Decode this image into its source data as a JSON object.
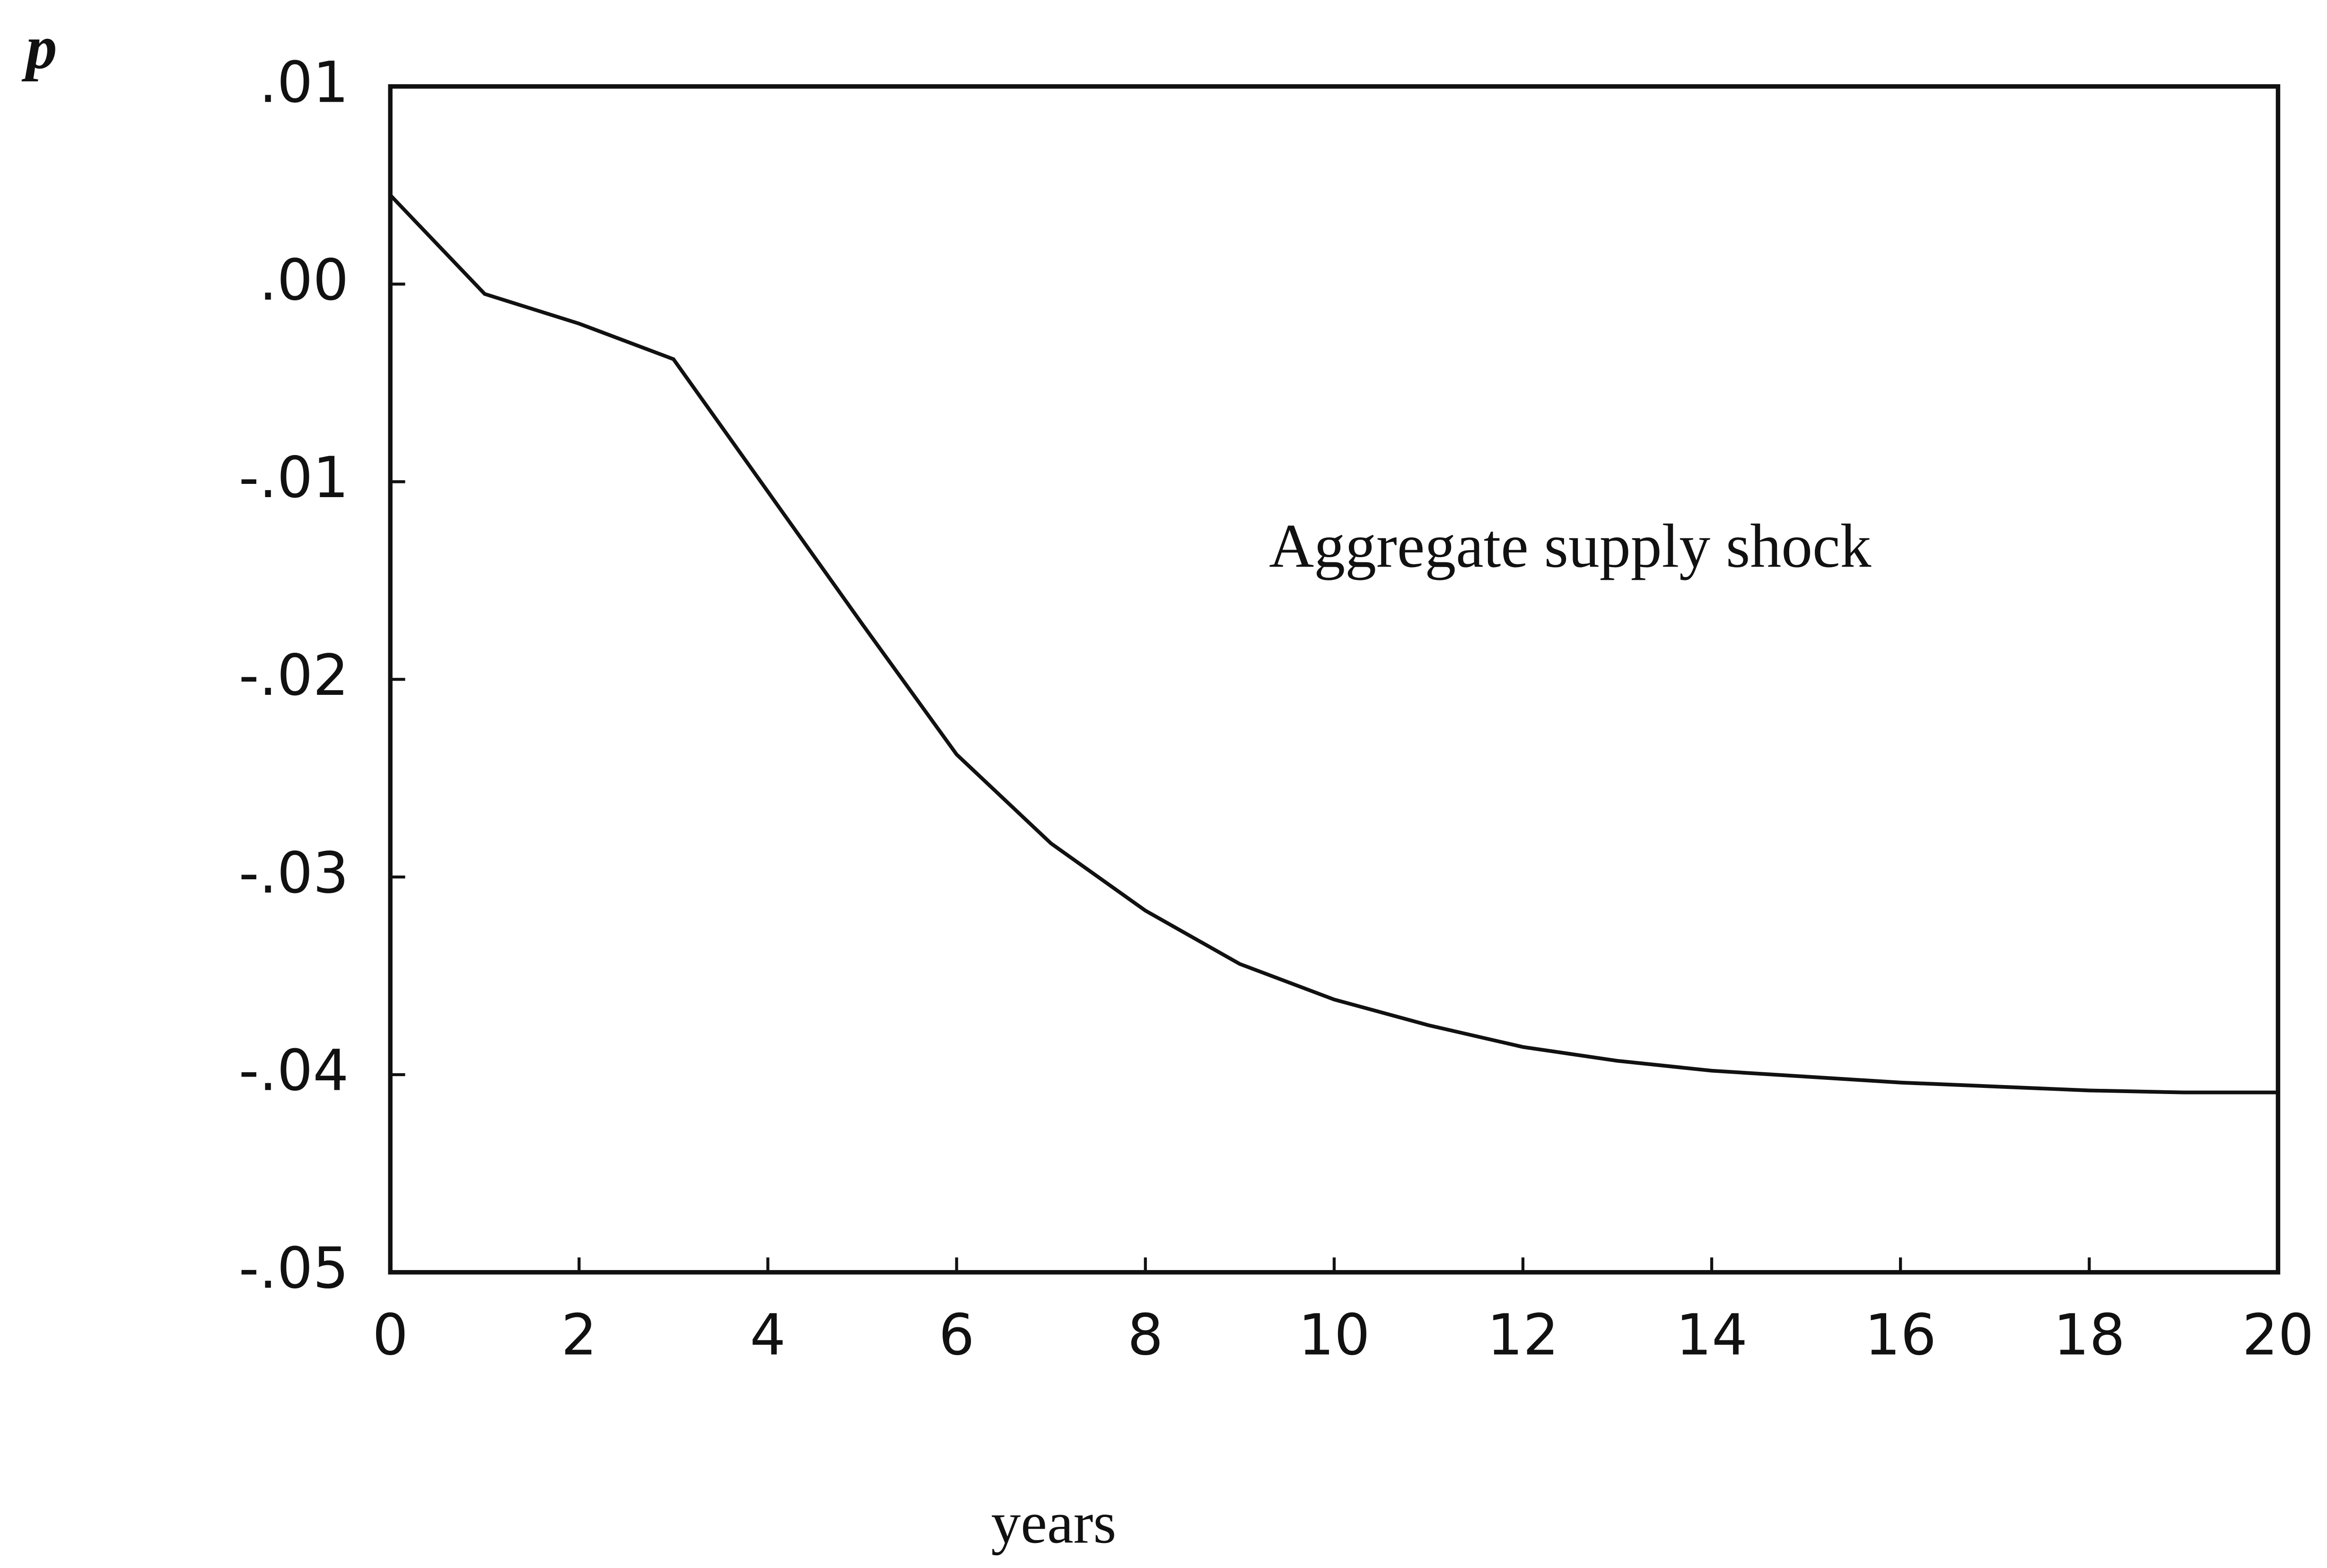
{
  "chart_data": {
    "type": "line",
    "y_label": "p",
    "x_label": "years",
    "annotation": "Aggregate supply shock",
    "x": [
      0,
      1,
      2,
      3,
      4,
      5,
      6,
      7,
      8,
      9,
      10,
      11,
      12,
      13,
      14,
      15,
      16,
      17,
      18,
      19,
      20
    ],
    "series": [
      {
        "color": "#111111",
        "values": [
          0.0045,
          -0.0005,
          -0.002,
          -0.0038,
          -0.0105,
          -0.0172,
          -0.0238,
          -0.0283,
          -0.0317,
          -0.0344,
          -0.0362,
          -0.0375,
          -0.0386,
          -0.0393,
          -0.0398,
          -0.0401,
          -0.0404,
          -0.0406,
          -0.0408,
          -0.0409,
          -0.0409
        ]
      }
    ],
    "xlim": [
      0,
      20
    ],
    "xticks": [
      0,
      2,
      4,
      6,
      8,
      10,
      12,
      14,
      16,
      18,
      20
    ],
    "ylim": [
      -0.05,
      0.01
    ],
    "yticks": [
      {
        "value": -0.05,
        "label": "-.05"
      },
      {
        "value": -0.04,
        "label": "-.04"
      },
      {
        "value": -0.03,
        "label": "-.03"
      },
      {
        "value": -0.02,
        "label": "-.02"
      },
      {
        "value": -0.01,
        "label": "-.01"
      },
      {
        "value": 0,
        "label": ".00"
      },
      {
        "value": 0.01,
        "label": ".01"
      }
    ],
    "grid": false
  }
}
